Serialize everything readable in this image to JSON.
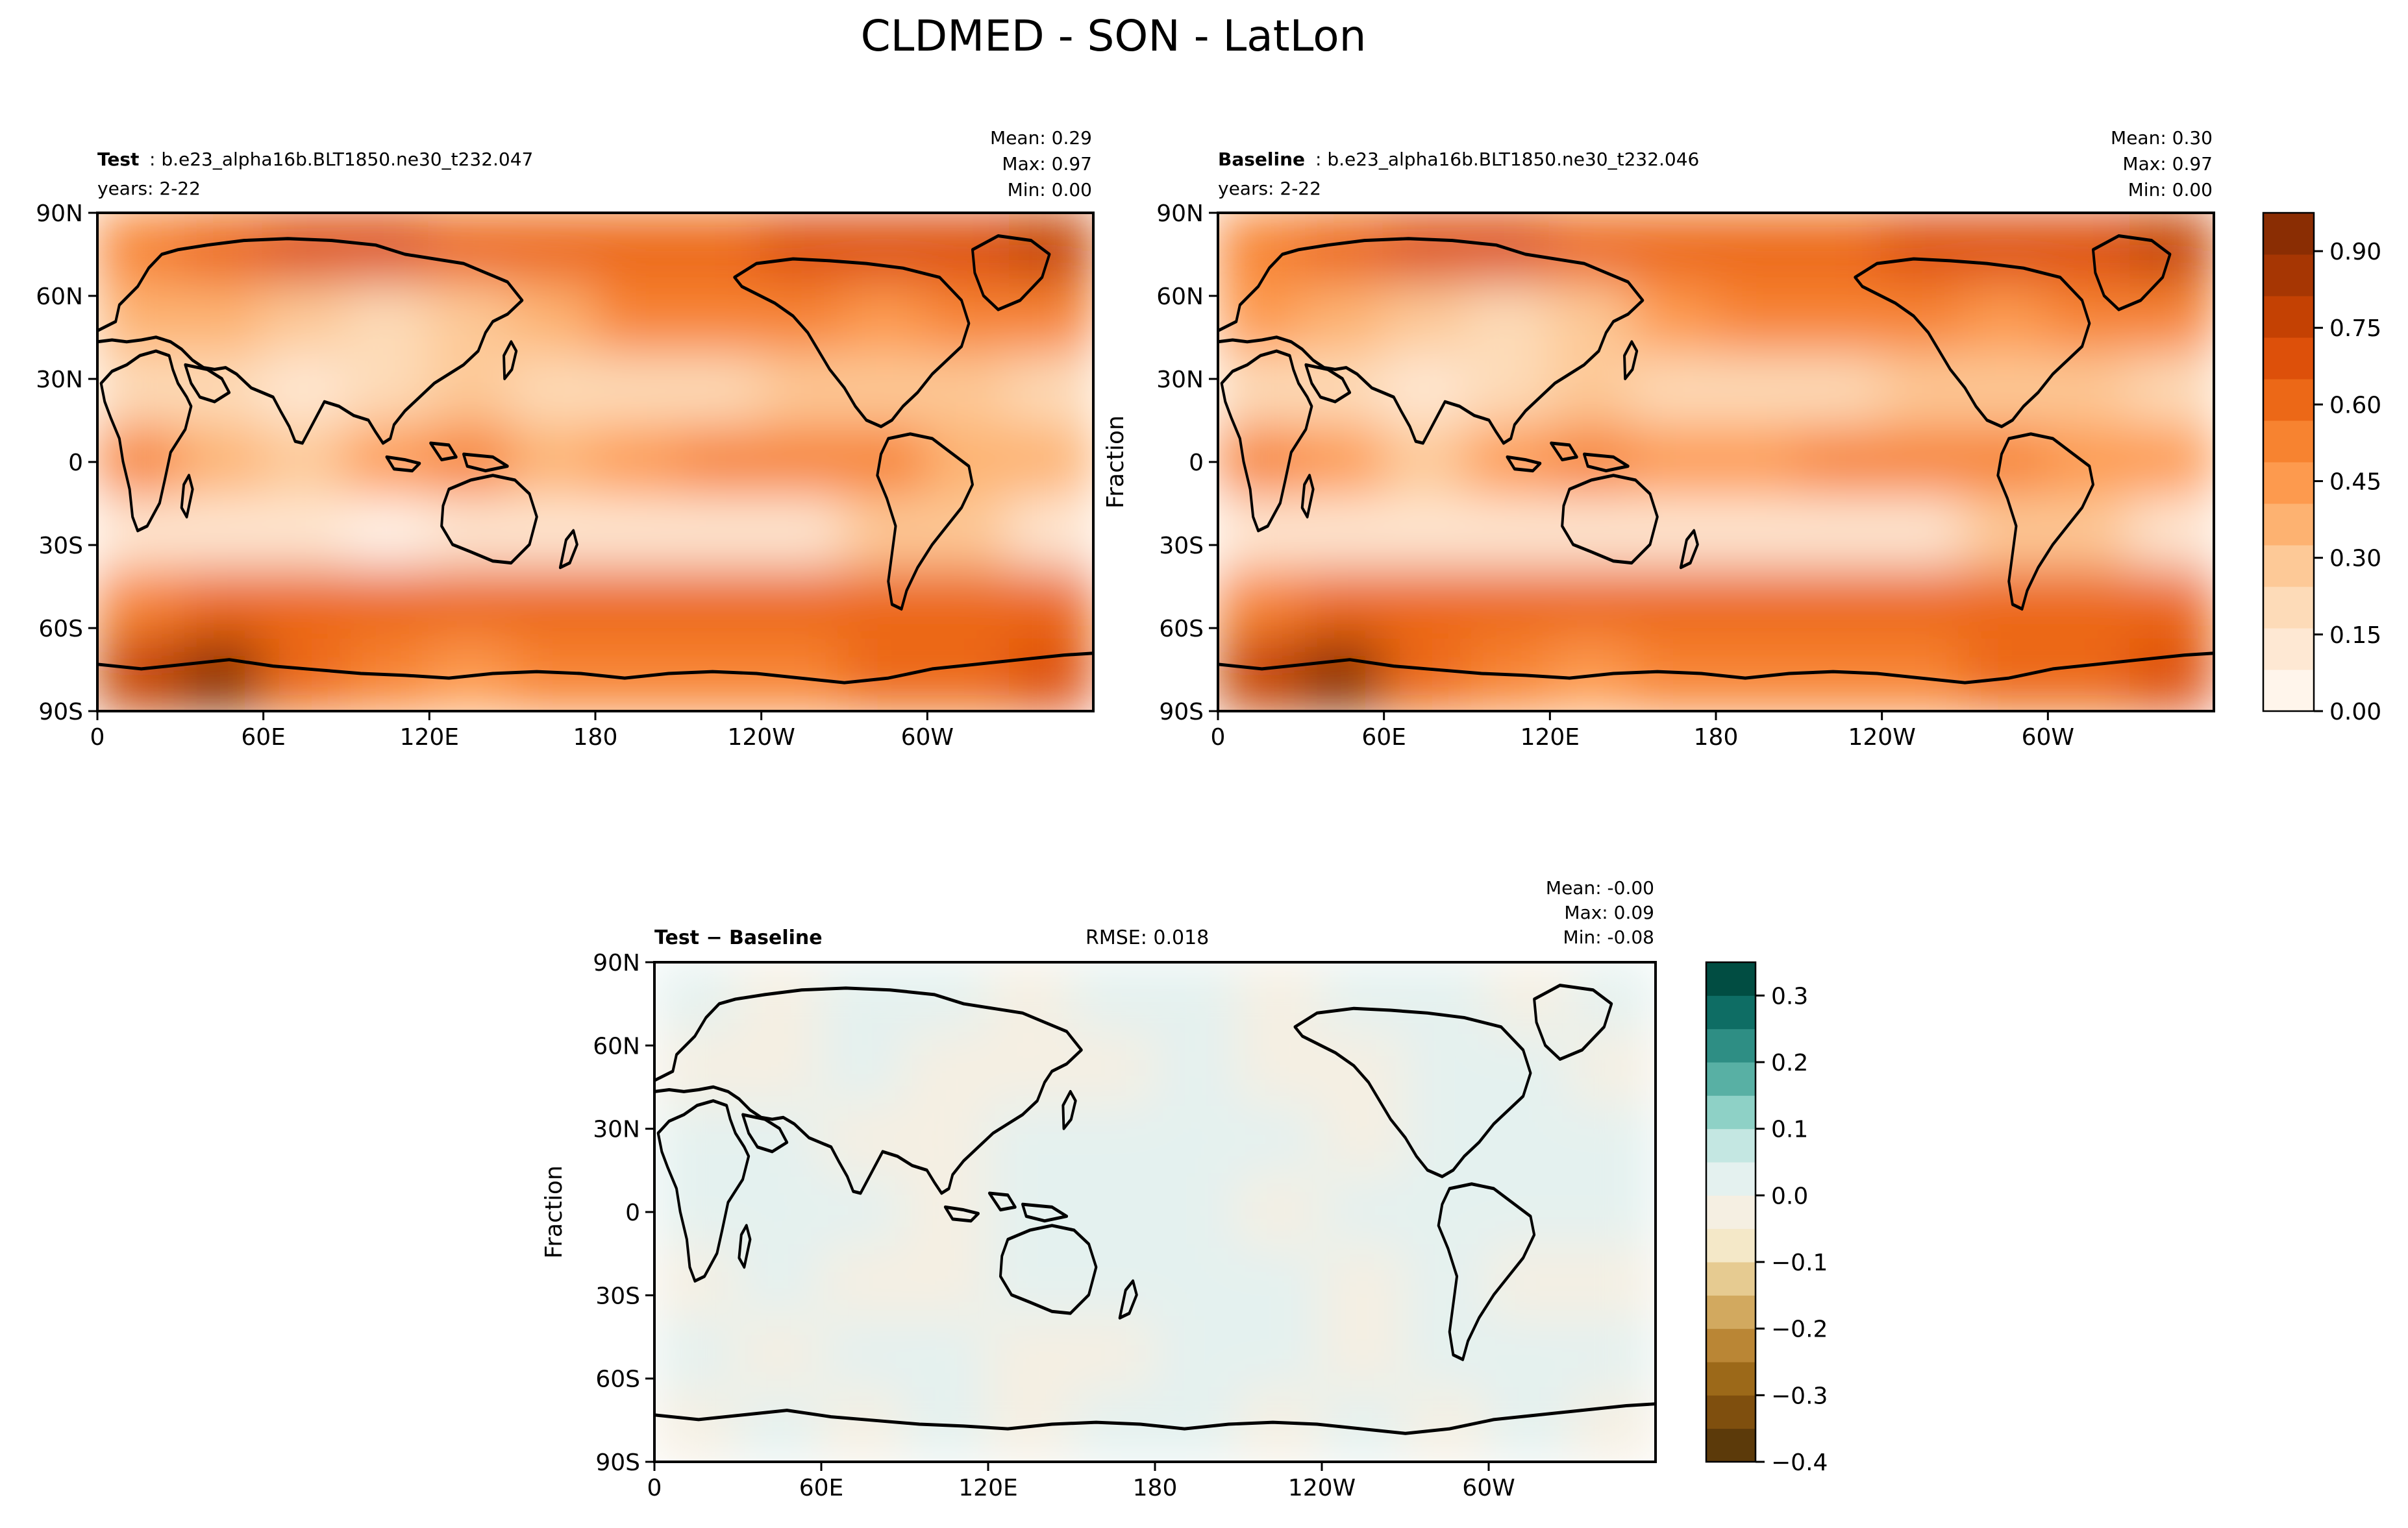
{
  "figure": {
    "title": "CLDMED - SON - LatLon"
  },
  "colors": {
    "oranges": [
      "#fff5eb",
      "#fee8d3",
      "#fddbb8",
      "#fdc997",
      "#fdb271",
      "#fd9a4e",
      "#f78330",
      "#ec6817",
      "#dd500a",
      "#c44103",
      "#a63603",
      "#8a2d03"
    ],
    "diff": [
      "#5c3a0a",
      "#7f4f0e",
      "#9c6919",
      "#ba8635",
      "#d2a95f",
      "#e6cb91",
      "#f4e8c8",
      "#f5efe2",
      "#e4f1ef",
      "#c4e7e2",
      "#8ed1c6",
      "#58b0a4",
      "#2e8e84",
      "#0e6d64",
      "#014d42"
    ],
    "coast": "#000000"
  },
  "icons": [
    "coastline-outline"
  ],
  "chart_data": [
    {
      "type": "heatmap",
      "panel": "test",
      "label_bold": "Test",
      "label_rest": ": b.e23_alpha16b.BLT1850.ne30_t232.047",
      "years": "years: 2-22",
      "stats": [
        "Mean:  0.29",
        "Max:  0.97",
        "Min:  0.00"
      ],
      "ylabel": "",
      "xticks": [
        "0",
        "60E",
        "120E",
        "180",
        "120W",
        "60W"
      ],
      "yticks": [
        "90N",
        "60N",
        "30N",
        "0",
        "30S",
        "60S",
        "90S"
      ],
      "xlim": [
        0,
        360
      ],
      "ylim": [
        -90,
        90
      ],
      "values": [
        [
          0.55,
          0.6,
          0.65,
          0.7,
          0.62,
          0.58,
          0.6,
          0.62,
          0.65,
          0.68,
          0.72,
          0.8
        ],
        [
          0.4,
          0.35,
          0.3,
          0.2,
          0.3,
          0.4,
          0.5,
          0.55,
          0.5,
          0.45,
          0.5,
          0.55
        ],
        [
          0.2,
          0.18,
          0.15,
          0.2,
          0.25,
          0.2,
          0.18,
          0.18,
          0.25,
          0.3,
          0.25,
          0.2
        ],
        [
          0.5,
          0.4,
          0.25,
          0.45,
          0.5,
          0.4,
          0.45,
          0.5,
          0.55,
          0.55,
          0.4,
          0.4
        ],
        [
          0.15,
          0.12,
          0.1,
          0.08,
          0.1,
          0.12,
          0.1,
          0.1,
          0.15,
          0.3,
          0.25,
          0.12
        ],
        [
          0.55,
          0.6,
          0.62,
          0.6,
          0.58,
          0.58,
          0.6,
          0.62,
          0.62,
          0.6,
          0.58,
          0.58
        ],
        [
          0.75,
          0.9,
          0.6,
          0.5,
          0.45,
          0.5,
          0.52,
          0.5,
          0.55,
          0.6,
          0.58,
          0.65
        ]
      ]
    },
    {
      "type": "heatmap",
      "panel": "baseline",
      "label_bold": "Baseline",
      "label_rest": ": b.e23_alpha16b.BLT1850.ne30_t232.046",
      "years": "years: 2-22",
      "stats": [
        "Mean:  0.30",
        "Max:  0.97",
        "Min:  0.00"
      ],
      "ylabel": "Fraction",
      "xticks": [
        "0",
        "60E",
        "120E",
        "180",
        "120W",
        "60W"
      ],
      "yticks": [
        "90N",
        "60N",
        "30N",
        "0",
        "30S",
        "60S",
        "90S"
      ],
      "xlim": [
        0,
        360
      ],
      "ylim": [
        -90,
        90
      ],
      "colorbar_ticks": [
        "0.00",
        "0.15",
        "0.30",
        "0.45",
        "0.60",
        "0.75",
        "0.90"
      ],
      "colorbar_range": [
        0.0,
        0.975
      ],
      "values": [
        [
          0.56,
          0.61,
          0.66,
          0.7,
          0.63,
          0.59,
          0.61,
          0.63,
          0.66,
          0.69,
          0.73,
          0.81
        ],
        [
          0.41,
          0.36,
          0.31,
          0.21,
          0.31,
          0.41,
          0.51,
          0.56,
          0.51,
          0.46,
          0.51,
          0.56
        ],
        [
          0.21,
          0.19,
          0.16,
          0.21,
          0.26,
          0.21,
          0.19,
          0.19,
          0.26,
          0.31,
          0.26,
          0.21
        ],
        [
          0.51,
          0.41,
          0.26,
          0.46,
          0.51,
          0.41,
          0.46,
          0.51,
          0.56,
          0.56,
          0.41,
          0.41
        ],
        [
          0.16,
          0.13,
          0.11,
          0.09,
          0.11,
          0.13,
          0.11,
          0.11,
          0.16,
          0.31,
          0.26,
          0.13
        ],
        [
          0.56,
          0.61,
          0.63,
          0.61,
          0.59,
          0.59,
          0.61,
          0.63,
          0.63,
          0.61,
          0.59,
          0.59
        ],
        [
          0.76,
          0.91,
          0.61,
          0.51,
          0.46,
          0.51,
          0.53,
          0.51,
          0.56,
          0.61,
          0.59,
          0.66
        ]
      ]
    },
    {
      "type": "heatmap",
      "panel": "difference",
      "label_bold": "Test − Baseline",
      "rmse": "RMSE: 0.018",
      "stats": [
        "Mean: -0.00",
        "Max:  0.09",
        "Min: -0.08"
      ],
      "ylabel": "Fraction",
      "xticks": [
        "0",
        "60E",
        "120E",
        "180",
        "120W",
        "60W"
      ],
      "yticks": [
        "90N",
        "60N",
        "30N",
        "0",
        "30S",
        "60S",
        "90S"
      ],
      "xlim": [
        0,
        360
      ],
      "ylim": [
        -90,
        90
      ],
      "colorbar_ticks": [
        "0.3",
        "0.2",
        "0.1",
        "0.0",
        "−0.1",
        "−0.2",
        "−0.3",
        "−0.4"
      ],
      "colorbar_range": [
        -0.4,
        0.35
      ],
      "values": [
        [
          0.01,
          -0.01,
          0.01,
          0.0,
          -0.01,
          0.01,
          0.0,
          -0.01,
          0.01,
          0.0,
          -0.01,
          0.01
        ],
        [
          -0.01,
          -0.01,
          0.01,
          -0.01,
          -0.01,
          -0.01,
          0.01,
          -0.01,
          -0.01,
          0.01,
          0.01,
          -0.01
        ],
        [
          0.01,
          0.01,
          -0.01,
          -0.01,
          0.01,
          0.01,
          0.01,
          0.01,
          -0.01,
          0.01,
          0.01,
          0.01
        ],
        [
          0.01,
          0.01,
          0.03,
          -0.01,
          0.02,
          0.01,
          0.01,
          -0.01,
          0.01,
          0.02,
          0.01,
          0.01
        ],
        [
          -0.01,
          0.01,
          -0.01,
          -0.01,
          0.01,
          0.01,
          0.01,
          0.01,
          -0.01,
          0.01,
          -0.01,
          -0.01
        ],
        [
          0.01,
          -0.01,
          0.01,
          0.01,
          -0.01,
          -0.01,
          0.01,
          0.01,
          -0.01,
          0.01,
          0.01,
          0.01
        ],
        [
          -0.01,
          0.02,
          -0.01,
          0.01,
          -0.01,
          0.01,
          0.03,
          -0.01,
          0.01,
          -0.01,
          0.01,
          -0.01
        ]
      ]
    }
  ]
}
